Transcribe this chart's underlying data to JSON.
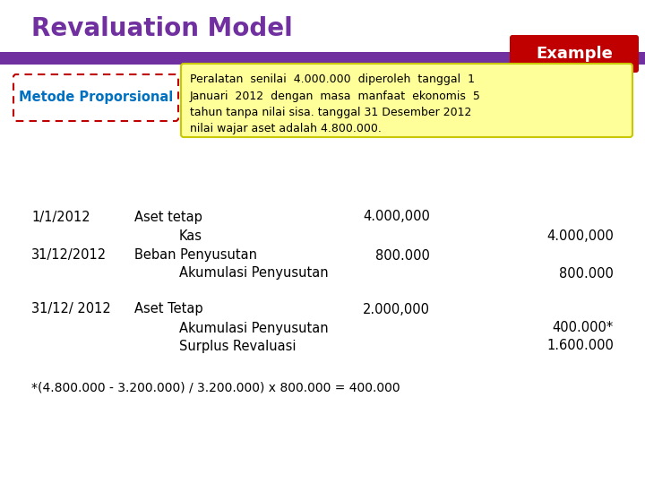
{
  "title": "Revaluation Model",
  "title_color": "#7030A0",
  "example_label": "Example",
  "example_bg": "#C00000",
  "example_text_color": "#FFFFFF",
  "header_bar_color": "#7030A0",
  "metode_label": "Metode Proporsional",
  "metode_border_color": "#C00000",
  "metode_text_color": "#0070C0",
  "description_text": "Peralatan  senilai  4.000.000  diperoleh  tanggal  1\nJanuari  2012  dengan  masa  manfaat  ekonomis  5\ntahun tanpa nilai sisa. tanggal 31 Desember 2012\nnilai wajar aset adalah 4.800.000.",
  "description_bg": "#FFFF99",
  "description_border": "#C8C800",
  "journal_lines": [
    {
      "date": "1/1/2012",
      "indent": 0,
      "account": "Aset tetap",
      "debit": "4.000,000",
      "credit": ""
    },
    {
      "date": "",
      "indent": 1,
      "account": "Kas",
      "debit": "",
      "credit": "4.000,000"
    },
    {
      "date": "31/12/2012",
      "indent": 0,
      "account": "Beban Penyusutan",
      "debit": "800.000",
      "credit": ""
    },
    {
      "date": "",
      "indent": 1,
      "account": "Akumulasi Penyusutan",
      "debit": "",
      "credit": "800.000"
    },
    {
      "date": "31/12/ 2012",
      "indent": 0,
      "account": "Aset Tetap",
      "debit": "2.000,000",
      "credit": ""
    },
    {
      "date": "",
      "indent": 1,
      "account": "Akumulasi Penyusutan",
      "debit": "",
      "credit": "400.000*"
    },
    {
      "date": "",
      "indent": 1,
      "account": "Surplus Revaluasi",
      "debit": "",
      "credit": "1.600.000"
    }
  ],
  "footnote": "*(4.800.000 - 3.200.000) / 3.200.000) x 800.000 = 400.000",
  "bg_color": "#FFFFFF",
  "text_color": "#000000",
  "font_size_title": 20,
  "font_size_body": 10.5
}
